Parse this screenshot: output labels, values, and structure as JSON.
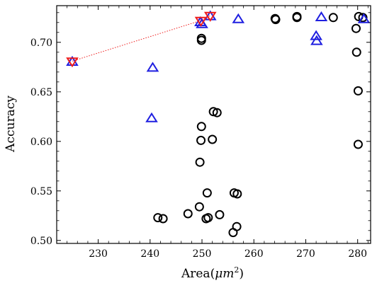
{
  "chart_data": {
    "type": "scatter",
    "xlabel": "Area(μm²)",
    "xlabel_prefix": "Area(",
    "xlabel_var": "μm",
    "xlabel_sup": "2",
    "xlabel_suffix": ")",
    "ylabel": "Accuracy",
    "xlim": [
      222,
      282.5
    ],
    "ylim": [
      0.497,
      0.737
    ],
    "xticks": [
      230,
      240,
      250,
      260,
      270,
      280
    ],
    "xtick_labels": [
      "230",
      "240",
      "250",
      "260",
      "270",
      "280"
    ],
    "yticks": [
      0.5,
      0.55,
      0.6,
      0.65,
      0.7
    ],
    "ytick_labels": [
      "0.50",
      "0.55",
      "0.60",
      "0.65",
      "0.70"
    ],
    "grid": false,
    "series": [
      {
        "marker": "circle",
        "color": "#000000",
        "points": [
          [
            241.5,
            0.523
          ],
          [
            242.5,
            0.522
          ],
          [
            247.3,
            0.527
          ],
          [
            249.5,
            0.534
          ],
          [
            251.0,
            0.548
          ],
          [
            250.8,
            0.522
          ],
          [
            251.2,
            0.523
          ],
          [
            253.4,
            0.526
          ],
          [
            256.2,
            0.548
          ],
          [
            256.8,
            0.547
          ],
          [
            256.0,
            0.508
          ],
          [
            256.7,
            0.514
          ],
          [
            249.6,
            0.579
          ],
          [
            249.8,
            0.601
          ],
          [
            249.9,
            0.615
          ],
          [
            252.0,
            0.602
          ],
          [
            252.2,
            0.63
          ],
          [
            252.9,
            0.629
          ],
          [
            249.9,
            0.704
          ],
          [
            249.9,
            0.702
          ],
          [
            264.1,
            0.724
          ],
          [
            264.2,
            0.723
          ],
          [
            268.3,
            0.725
          ],
          [
            268.3,
            0.726
          ],
          [
            275.3,
            0.725
          ],
          [
            279.7,
            0.714
          ],
          [
            280.2,
            0.726
          ],
          [
            281.0,
            0.725
          ],
          [
            279.8,
            0.69
          ],
          [
            280.1,
            0.651
          ],
          [
            280.1,
            0.597
          ]
        ]
      },
      {
        "marker": "triangle-up",
        "color": "#1f1fe0",
        "points": [
          [
            225.0,
            0.68
          ],
          [
            240.3,
            0.623
          ],
          [
            240.5,
            0.674
          ],
          [
            249.7,
            0.72
          ],
          [
            250.0,
            0.718
          ],
          [
            251.6,
            0.726
          ],
          [
            257.0,
            0.723
          ],
          [
            272.0,
            0.706
          ],
          [
            272.1,
            0.701
          ],
          [
            273.0,
            0.725
          ],
          [
            281.2,
            0.723
          ]
        ]
      },
      {
        "marker": "triangle-down",
        "color": "#ee1c1c",
        "line_style": "dotted",
        "points": [
          [
            225.0,
            0.681
          ],
          [
            249.8,
            0.722
          ],
          [
            251.6,
            0.727
          ]
        ]
      }
    ]
  }
}
